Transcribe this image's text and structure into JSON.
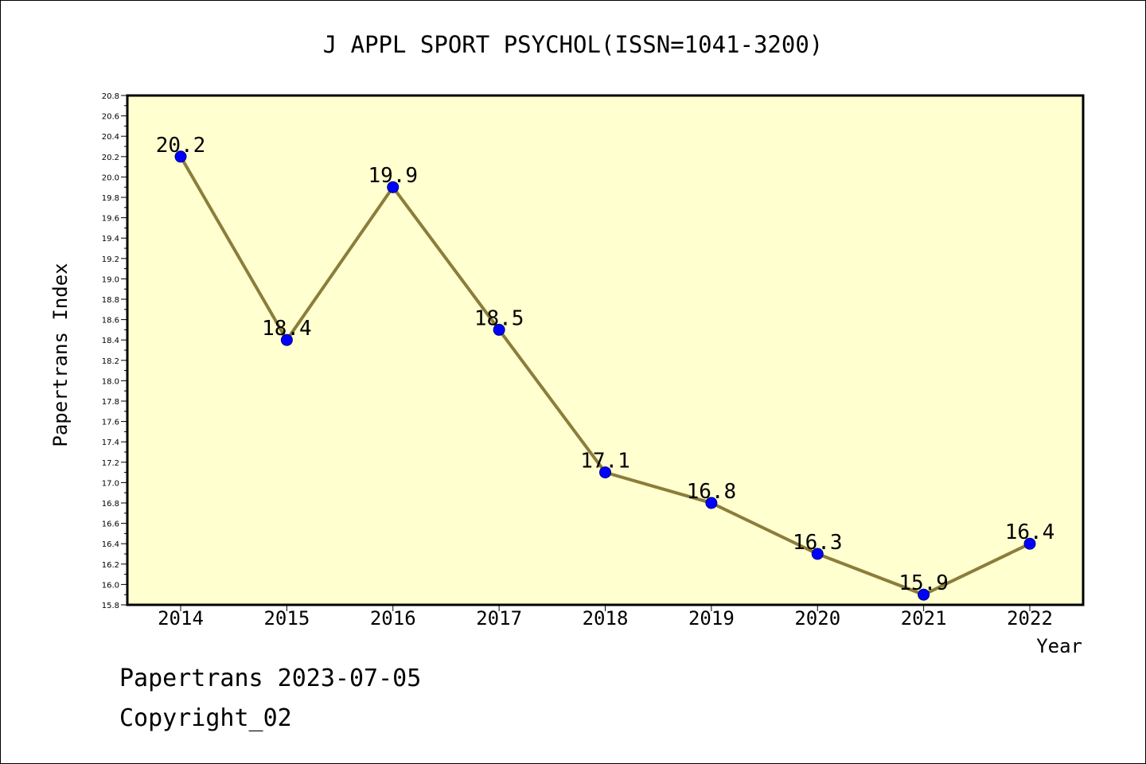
{
  "colors": {
    "plot_background": "#FFFFD0",
    "line": "#8B7D3A",
    "marker_fill": "#0000FF",
    "marker_stroke": "#000080",
    "axis": "#000000"
  },
  "footer": {
    "date_line": "Papertrans 2023-07-05",
    "copyright_line": "Copyright_02"
  },
  "chart_data": {
    "type": "line",
    "title": "J APPL SPORT PSYCHOL(ISSN=1041-3200)",
    "xlabel": "Year",
    "ylabel": "Papertrans Index",
    "categories": [
      "2014",
      "2015",
      "2016",
      "2017",
      "2018",
      "2019",
      "2020",
      "2021",
      "2022"
    ],
    "values": [
      20.2,
      18.4,
      19.9,
      18.5,
      17.1,
      16.8,
      16.3,
      15.9,
      16.4
    ],
    "data_labels": [
      "20.2",
      "18.4",
      "19.9",
      "18.5",
      "17.1",
      "16.8",
      "16.3",
      "15.9",
      "16.4"
    ],
    "ylim": [
      15.8,
      20.8
    ],
    "ytick_step": 0.2,
    "yticks": [
      "15.8",
      "16.0",
      "16.2",
      "16.4",
      "16.6",
      "16.8",
      "17.0",
      "17.2",
      "17.4",
      "17.6",
      "17.8",
      "18.0",
      "18.2",
      "18.4",
      "18.6",
      "18.8",
      "19.0",
      "19.2",
      "19.4",
      "19.6",
      "19.8",
      "20.0",
      "20.2",
      "20.4",
      "20.6",
      "20.8"
    ],
    "grid": false,
    "legend": "none"
  }
}
